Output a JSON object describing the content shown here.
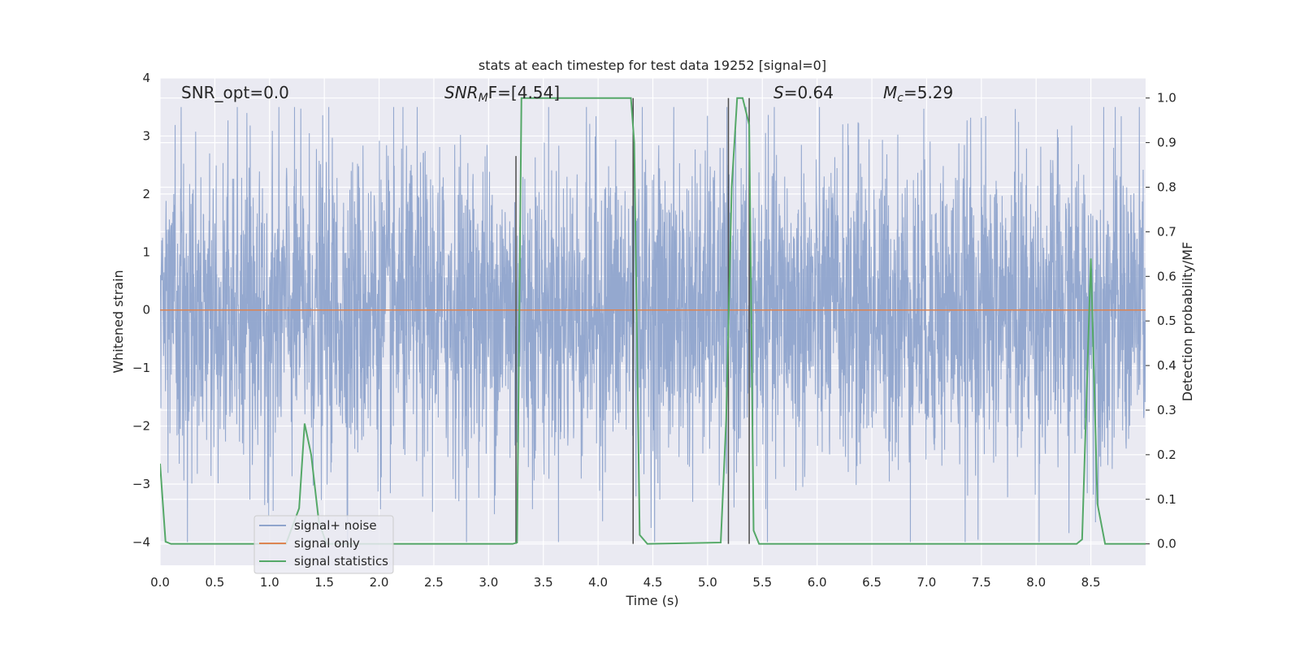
{
  "chart_data": {
    "type": "line",
    "title": "stats at each timestep for test data 19252 [signal=0]",
    "xlabel": "Time (s)",
    "ylabel": "Whitened strain",
    "ylabel_right": "Detection probability/MF",
    "xlim": [
      0.0,
      9.0
    ],
    "ylim": [
      -4.4,
      4.0
    ],
    "ylim_right": [
      -0.048,
      1.045
    ],
    "x_ticks": [
      "0.0",
      "0.5",
      "1.0",
      "1.5",
      "2.0",
      "2.5",
      "3.0",
      "3.5",
      "4.0",
      "4.5",
      "5.0",
      "5.5",
      "6.0",
      "6.5",
      "7.0",
      "7.5",
      "8.0",
      "8.5"
    ],
    "y_ticks": [
      "4",
      "3",
      "2",
      "1",
      "0",
      "−1",
      "−2",
      "−3",
      "−4"
    ],
    "y_ticks_right": [
      "1.0",
      "0.9",
      "0.8",
      "0.7",
      "0.6",
      "0.5",
      "0.4",
      "0.3",
      "0.2",
      "0.1",
      "0.0"
    ],
    "annotations": {
      "snr_opt": "SNR_opt=0.0",
      "snr_mf_base": "SNR",
      "snr_mf_sub": "M",
      "snr_mf_rest": "F=[4.54]",
      "s_var": "S",
      "s_rest": "=0.64",
      "mc_var": "M",
      "mc_sub": "c",
      "mc_rest": "=5.29"
    },
    "legend": {
      "placement": "lower-left",
      "entries": [
        "signal+ noise",
        "signal only",
        "signal statistics"
      ]
    },
    "colors": {
      "noise": "#8fa4cc",
      "signal": "#dd8452",
      "stats": "#55a868",
      "vlines": "#4c4c4c",
      "axes_bg": "#eaeaf2",
      "grid": "#ffffff"
    },
    "series": [
      {
        "name": "signal+ noise",
        "axis": "left",
        "kind": "noise-band",
        "x_range": [
          0.0,
          9.0
        ],
        "typical_range": [
          -1.7,
          1.8
        ],
        "extreme_range": [
          -4.0,
          3.5
        ]
      },
      {
        "name": "signal only",
        "axis": "left",
        "x": [
          0.0,
          9.0
        ],
        "y": [
          0.0,
          0.0
        ]
      },
      {
        "name": "signal statistics",
        "axis": "right",
        "x": [
          0.0,
          0.05,
          0.1,
          1.15,
          1.27,
          1.32,
          1.38,
          1.45,
          1.52,
          3.22,
          3.26,
          3.3,
          3.35,
          4.3,
          4.33,
          4.38,
          4.45,
          5.12,
          5.17,
          5.22,
          5.27,
          5.32,
          5.38,
          5.42,
          5.47,
          8.37,
          8.42,
          8.5,
          8.56,
          8.63,
          9.0
        ],
        "y": [
          0.18,
          0.005,
          0.0,
          0.0,
          0.08,
          0.27,
          0.2,
          0.05,
          0.0,
          0.0,
          0.003,
          1.0,
          1.0,
          1.0,
          0.9,
          0.02,
          0.0,
          0.003,
          0.28,
          0.8,
          1.0,
          1.0,
          0.94,
          0.03,
          0.0,
          0.0,
          0.01,
          0.64,
          0.09,
          0.0,
          0.0
        ]
      }
    ],
    "vertical_lines": [
      {
        "x": 3.25,
        "y_right": [
          0.0,
          0.87
        ]
      },
      {
        "x": 4.32,
        "y_right": [
          0.0,
          1.0
        ]
      },
      {
        "x": 5.19,
        "y_right": [
          0.0,
          1.0
        ]
      },
      {
        "x": 5.38,
        "y_right": [
          0.0,
          1.0
        ]
      }
    ]
  }
}
